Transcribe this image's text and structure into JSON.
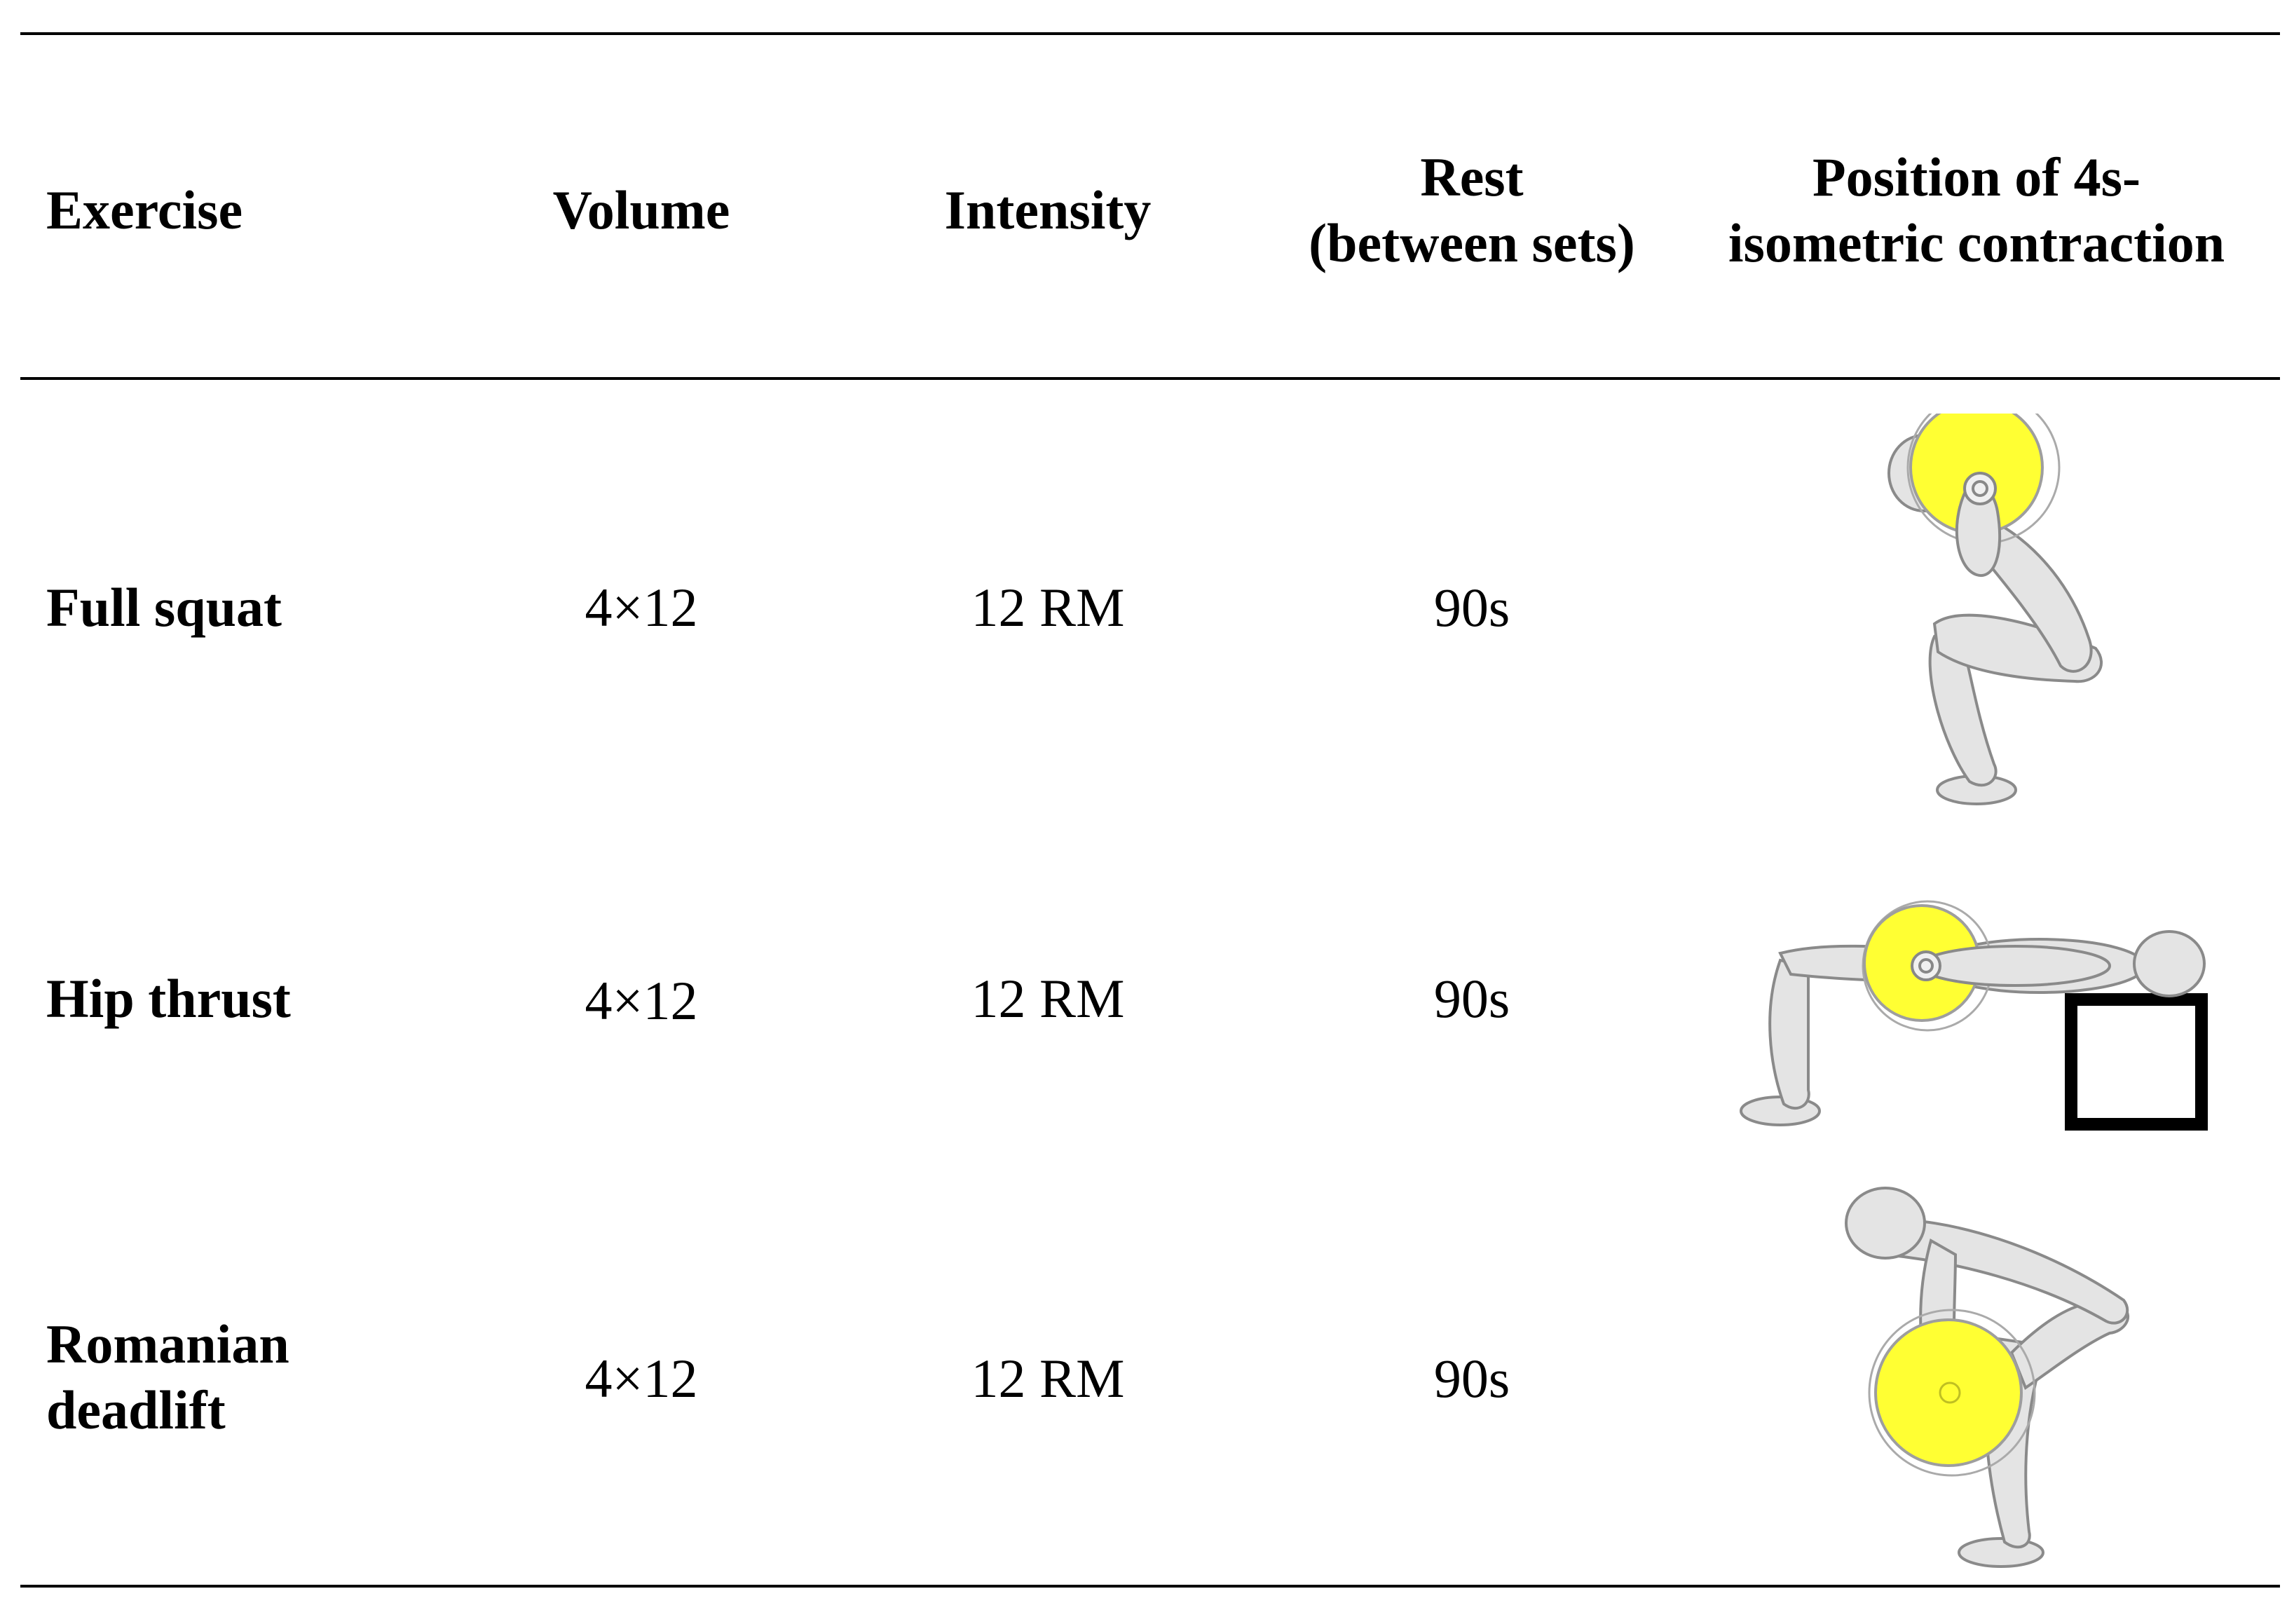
{
  "headers": {
    "exercise": "Exercise",
    "volume": "Volume",
    "intensity": "Intensity",
    "rest_line1": "Rest",
    "rest_line2": "(between sets)",
    "position_line1": "Position of 4s-",
    "position_line2": "isometric contraction"
  },
  "rows": [
    {
      "exercise": "Full squat",
      "volume": "4×12",
      "intensity": "12 RM",
      "rest": "90s",
      "figure": "full-squat-figure"
    },
    {
      "exercise": "Hip thrust",
      "volume": "4×12",
      "intensity": "12 RM",
      "rest": "90s",
      "figure": "hip-thrust-figure"
    },
    {
      "exercise_line1": "Romanian",
      "exercise_line2": "deadlift",
      "volume": "4×12",
      "intensity": "12 RM",
      "rest": "90s",
      "figure": "romanian-deadlift-figure"
    }
  ],
  "colors": {
    "plate": "#ffff33",
    "body": "#e4e4e4",
    "rule": "#000000"
  }
}
